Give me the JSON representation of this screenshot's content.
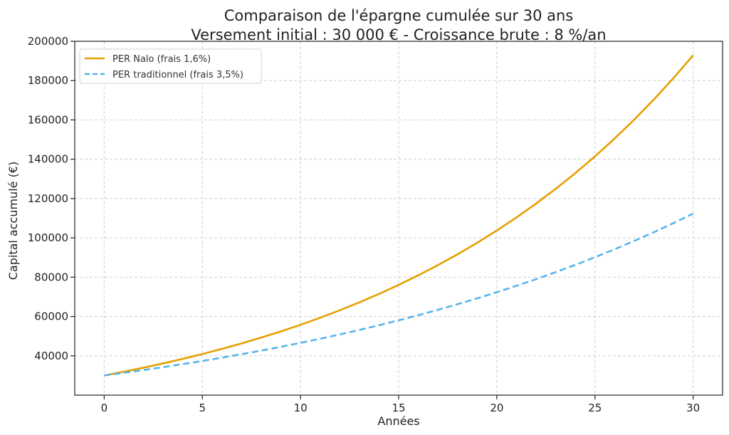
{
  "chart_data": {
    "type": "line",
    "title": "Comparaison de l'épargne cumulée sur 30 ans",
    "subtitle": "Versement initial : 30 000 € - Croissance brute : 8 %/an",
    "xlabel": "Années",
    "ylabel": "Capital accumulé (€)",
    "xlim": [
      -1.5,
      31.5
    ],
    "ylim": [
      20000,
      200000
    ],
    "x_ticks": [
      "0",
      "5",
      "10",
      "15",
      "20",
      "25",
      "30"
    ],
    "y_ticks": [
      "40000",
      "60000",
      "80000",
      "100000",
      "120000",
      "140000",
      "160000",
      "180000",
      "200000"
    ],
    "grid": true,
    "legend_position": "top-left",
    "x": [
      0,
      1,
      2,
      3,
      4,
      5,
      6,
      7,
      8,
      9,
      10,
      11,
      12,
      13,
      14,
      15,
      16,
      17,
      18,
      19,
      20,
      21,
      22,
      23,
      24,
      25,
      26,
      27,
      28,
      29,
      30
    ],
    "series": [
      {
        "name": "PER Nalo (frais 1,6%)",
        "color": "#E69F00",
        "style": "solid",
        "values": [
          30000,
          31920,
          33963,
          36137,
          38449,
          40910,
          43528,
          46314,
          49278,
          52432,
          55788,
          59358,
          63157,
          67199,
          71500,
          76076,
          80945,
          86125,
          91638,
          97502,
          103743,
          110382,
          117447,
          124964,
          132961,
          141471,
          150525,
          160159,
          170409,
          181315,
          192920
        ]
      },
      {
        "name": "PER traditionnel (frais 3,5%)",
        "color": "#56B4E9",
        "style": "dashed",
        "values": [
          30000,
          31350,
          32761,
          34235,
          35776,
          37385,
          39068,
          40826,
          42663,
          44583,
          46589,
          48686,
          50876,
          53166,
          55558,
          58058,
          60671,
          63401,
          66254,
          69236,
          72351,
          75607,
          79009,
          82565,
          86280,
          90163,
          94220,
          98460,
          102891,
          107521,
          112359
        ]
      }
    ]
  }
}
